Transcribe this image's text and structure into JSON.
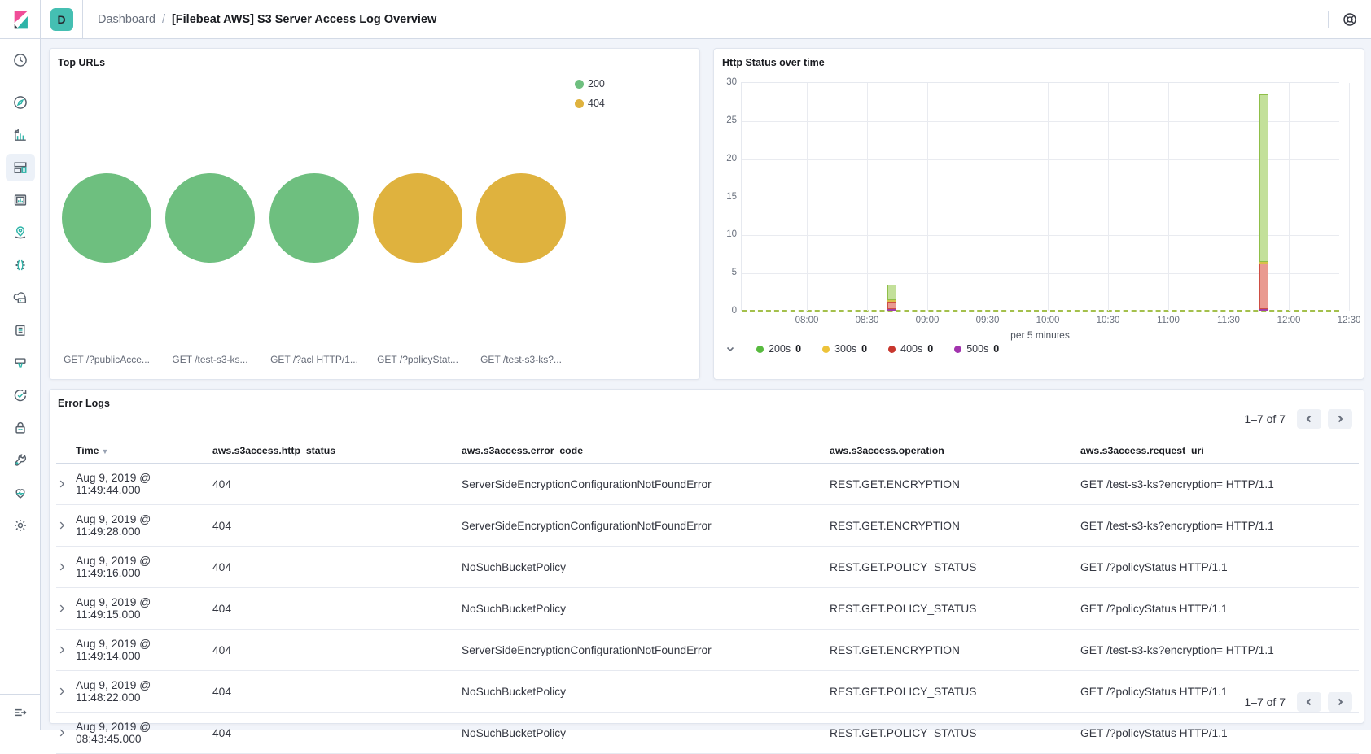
{
  "header": {
    "space_badge": "D",
    "breadcrumb": {
      "root": "Dashboard",
      "separator": "/",
      "current": "[Filebeat AWS] S3 Server Access Log Overview"
    }
  },
  "sidebar": {
    "items": [
      {
        "name": "recently-viewed",
        "icon": "clock-icon"
      },
      {
        "name": "discover",
        "icon": "compass-icon"
      },
      {
        "name": "visualize",
        "icon": "bar-chart-icon"
      },
      {
        "name": "dashboard",
        "icon": "dashboard-icon",
        "selected": true
      },
      {
        "name": "canvas",
        "icon": "picture-frame-icon"
      },
      {
        "name": "maps",
        "icon": "map-pin-icon"
      },
      {
        "name": "machine-learning",
        "icon": "ml-dots-icon"
      },
      {
        "name": "metrics",
        "icon": "cloud-icon"
      },
      {
        "name": "logs",
        "icon": "scroll-icon"
      },
      {
        "name": "apm",
        "icon": "funnel-icon"
      },
      {
        "name": "uptime",
        "icon": "uptime-check-icon"
      },
      {
        "name": "siem",
        "icon": "lock-icon"
      },
      {
        "name": "dev-tools",
        "icon": "wrench-icon"
      },
      {
        "name": "stack-monitoring",
        "icon": "heartbeat-icon"
      },
      {
        "name": "management",
        "icon": "gear-icon"
      }
    ]
  },
  "top_urls": {
    "title": "Top URLs",
    "legend": [
      {
        "label": "200",
        "color": "#6EBF7F"
      },
      {
        "label": "404",
        "color": "#DFB23E"
      }
    ],
    "chart_data": {
      "type": "bubble",
      "bubbles": [
        {
          "label": "GET /?publicAcce...",
          "series": "200",
          "color": "#6EBF7F"
        },
        {
          "label": "GET /test-s3-ks...",
          "series": "200",
          "color": "#6EBF7F"
        },
        {
          "label": "GET /?acl HTTP/1...",
          "series": "200",
          "color": "#6EBF7F"
        },
        {
          "label": "GET /?policyStat...",
          "series": "404",
          "color": "#DFB23E"
        },
        {
          "label": "GET /test-s3-ks?...",
          "series": "404",
          "color": "#DFB23E"
        }
      ]
    }
  },
  "http_status": {
    "title": "Http Status over time",
    "chart_data": {
      "type": "bar",
      "stacked": true,
      "xlabel": "per 5 minutes",
      "x_ticks": [
        "08:00",
        "08:30",
        "09:00",
        "09:30",
        "10:00",
        "10:30",
        "11:00",
        "11:30",
        "12:00",
        "12:30"
      ],
      "y_ticks": [
        0,
        5,
        10,
        15,
        20,
        25,
        30
      ],
      "ylim": [
        0,
        30
      ],
      "grid": true,
      "zero_line_color": "#A4C04C",
      "series": [
        {
          "name": "200s",
          "fill": "#C3E09A",
          "stroke": "#8FBF49",
          "points": [
            {
              "x": "08:40",
              "y": 2
            },
            {
              "x": "11:45",
              "y": 22
            }
          ]
        },
        {
          "name": "300s",
          "fill": "#D9C04A",
          "stroke": "#D9C04A",
          "points": [
            {
              "x": "08:40",
              "y": 0
            },
            {
              "x": "11:45",
              "y": 0
            }
          ]
        },
        {
          "name": "400s",
          "fill": "#E99A90",
          "stroke": "#CE4E43",
          "points": [
            {
              "x": "08:40",
              "y": 1
            },
            {
              "x": "11:45",
              "y": 6
            }
          ]
        },
        {
          "name": "500s",
          "fill": "#A13EA8",
          "stroke": "#A13EA8",
          "points": [
            {
              "x": "08:40",
              "y": 0
            },
            {
              "x": "11:45",
              "y": 0
            }
          ]
        }
      ]
    },
    "legend": [
      {
        "label": "200s",
        "value": "0",
        "color": "#58BA3F"
      },
      {
        "label": "300s",
        "value": "0",
        "color": "#EDC33A"
      },
      {
        "label": "400s",
        "value": "0",
        "color": "#C8372E"
      },
      {
        "label": "500s",
        "value": "0",
        "color": "#A234AE"
      }
    ]
  },
  "error_logs": {
    "title": "Error Logs",
    "pagination": {
      "label": "1–7 of 7"
    },
    "columns": [
      "Time",
      "aws.s3access.http_status",
      "aws.s3access.error_code",
      "aws.s3access.operation",
      "aws.s3access.request_uri"
    ],
    "rows": [
      {
        "time": "Aug 9, 2019 @ 11:49:44.000",
        "http_status": "404",
        "error_code": "ServerSideEncryptionConfigurationNotFoundError",
        "operation": "REST.GET.ENCRYPTION",
        "request_uri": "GET /test-s3-ks?encryption= HTTP/1.1"
      },
      {
        "time": "Aug 9, 2019 @ 11:49:28.000",
        "http_status": "404",
        "error_code": "ServerSideEncryptionConfigurationNotFoundError",
        "operation": "REST.GET.ENCRYPTION",
        "request_uri": "GET /test-s3-ks?encryption= HTTP/1.1"
      },
      {
        "time": "Aug 9, 2019 @ 11:49:16.000",
        "http_status": "404",
        "error_code": "NoSuchBucketPolicy",
        "operation": "REST.GET.POLICY_STATUS",
        "request_uri": "GET /?policyStatus HTTP/1.1"
      },
      {
        "time": "Aug 9, 2019 @ 11:49:15.000",
        "http_status": "404",
        "error_code": "NoSuchBucketPolicy",
        "operation": "REST.GET.POLICY_STATUS",
        "request_uri": "GET /?policyStatus HTTP/1.1"
      },
      {
        "time": "Aug 9, 2019 @ 11:49:14.000",
        "http_status": "404",
        "error_code": "ServerSideEncryptionConfigurationNotFoundError",
        "operation": "REST.GET.ENCRYPTION",
        "request_uri": "GET /test-s3-ks?encryption= HTTP/1.1"
      },
      {
        "time": "Aug 9, 2019 @ 11:48:22.000",
        "http_status": "404",
        "error_code": "NoSuchBucketPolicy",
        "operation": "REST.GET.POLICY_STATUS",
        "request_uri": "GET /?policyStatus HTTP/1.1"
      },
      {
        "time": "Aug 9, 2019 @ 08:43:45.000",
        "http_status": "404",
        "error_code": "NoSuchBucketPolicy",
        "operation": "REST.GET.POLICY_STATUS",
        "request_uri": "GET /?policyStatus HTTP/1.1"
      }
    ]
  }
}
